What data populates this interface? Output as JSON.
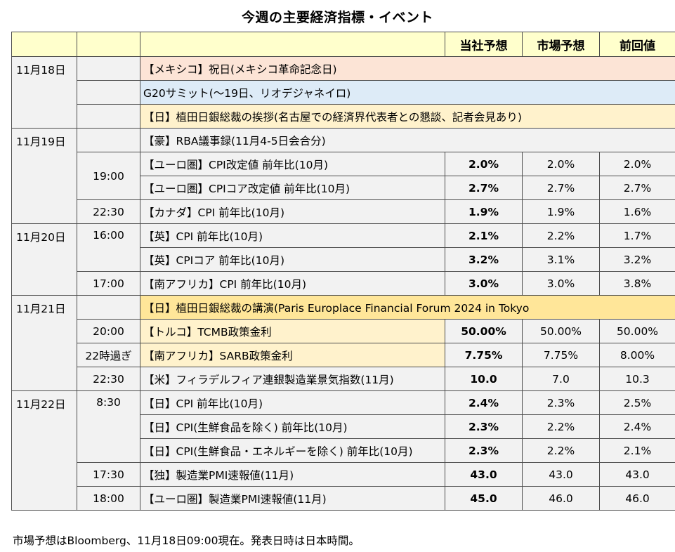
{
  "title": "今週の主要経済指標・イベント",
  "headers": {
    "own": "当社予想",
    "market": "市場予想",
    "prev": "前回値"
  },
  "dates": {
    "d18": "11月18日",
    "d19": "11月19日",
    "d20": "11月20日",
    "d21": "11月21日",
    "d22": "11月22日"
  },
  "rows": [
    {
      "time": "",
      "event": "【メキシコ】祝日(メキシコ革命記念日)",
      "own": "",
      "market": "",
      "prev": ""
    },
    {
      "time": "",
      "event": "G20サミット(～19日、リオデジャネイロ)",
      "own": "",
      "market": "",
      "prev": ""
    },
    {
      "time": "",
      "event": "【日】植田日銀総裁の挨拶(名古屋での経済界代表者との懇談、記者会見あり)",
      "own": "",
      "market": "",
      "prev": ""
    },
    {
      "time": "",
      "event": "【豪】RBA議事録(11月4-5日会合分)",
      "own": "",
      "market": "",
      "prev": ""
    },
    {
      "time": "19:00",
      "event": "【ユーロ圏】CPI改定値 前年比(10月)",
      "own": "2.0%",
      "market": "2.0%",
      "prev": "2.0%"
    },
    {
      "time": "",
      "event": "【ユーロ圏】CPIコア改定値 前年比(10月)",
      "own": "2.7%",
      "market": "2.7%",
      "prev": "2.7%"
    },
    {
      "time": "22:30",
      "event": "【カナダ】CPI 前年比(10月)",
      "own": "1.9%",
      "market": "1.9%",
      "prev": "1.6%"
    },
    {
      "time": "16:00",
      "event": "【英】CPI 前年比(10月)",
      "own": "2.1%",
      "market": "2.2%",
      "prev": "1.7%"
    },
    {
      "time": "",
      "event": "【英】CPIコア 前年比(10月)",
      "own": "3.2%",
      "market": "3.1%",
      "prev": "3.2%"
    },
    {
      "time": "17:00",
      "event": "【南アフリカ】CPI 前年比(10月)",
      "own": "3.0%",
      "market": "3.0%",
      "prev": "3.8%"
    },
    {
      "time": "",
      "event": "【日】植田日銀総裁の講演(Paris Europlace Financial Forum 2024 in Tokyo",
      "own": "",
      "market": "",
      "prev": ""
    },
    {
      "time": "20:00",
      "event": "【トルコ】TCMB政策金利",
      "own": "50.00%",
      "market": "50.00%",
      "prev": "50.00%"
    },
    {
      "time": "22時過ぎ",
      "event": "【南アフリカ】SARB政策金利",
      "own": "7.75%",
      "market": "7.75%",
      "prev": "8.00%"
    },
    {
      "time": "22:30",
      "event": "【米】フィラデルフィア連銀製造業景気指数(11月)",
      "own": "10.0",
      "market": "7.0",
      "prev": "10.3"
    },
    {
      "time": "8:30",
      "event": "【日】CPI 前年比(10月)",
      "own": "2.4%",
      "market": "2.3%",
      "prev": "2.5%"
    },
    {
      "time": "",
      "event": "【日】CPI(生鮮食品を除く) 前年比(10月)",
      "own": "2.3%",
      "market": "2.2%",
      "prev": "2.4%"
    },
    {
      "time": "",
      "event": "【日】CPI(生鮮食品・エネルギーを除く) 前年比(10月)",
      "own": "2.3%",
      "market": "2.2%",
      "prev": "2.1%"
    },
    {
      "time": "17:30",
      "event": "【独】製造業PMI速報値(11月)",
      "own": "43.0",
      "market": "43.0",
      "prev": "43.0"
    },
    {
      "time": "18:00",
      "event": "【ユーロ圏】製造業PMI速報値(11月)",
      "own": "45.0",
      "market": "46.0",
      "prev": "46.0"
    }
  ],
  "footnote": "市場予想はBloomberg、11月18日09:00現在。発表日時は日本時間。"
}
